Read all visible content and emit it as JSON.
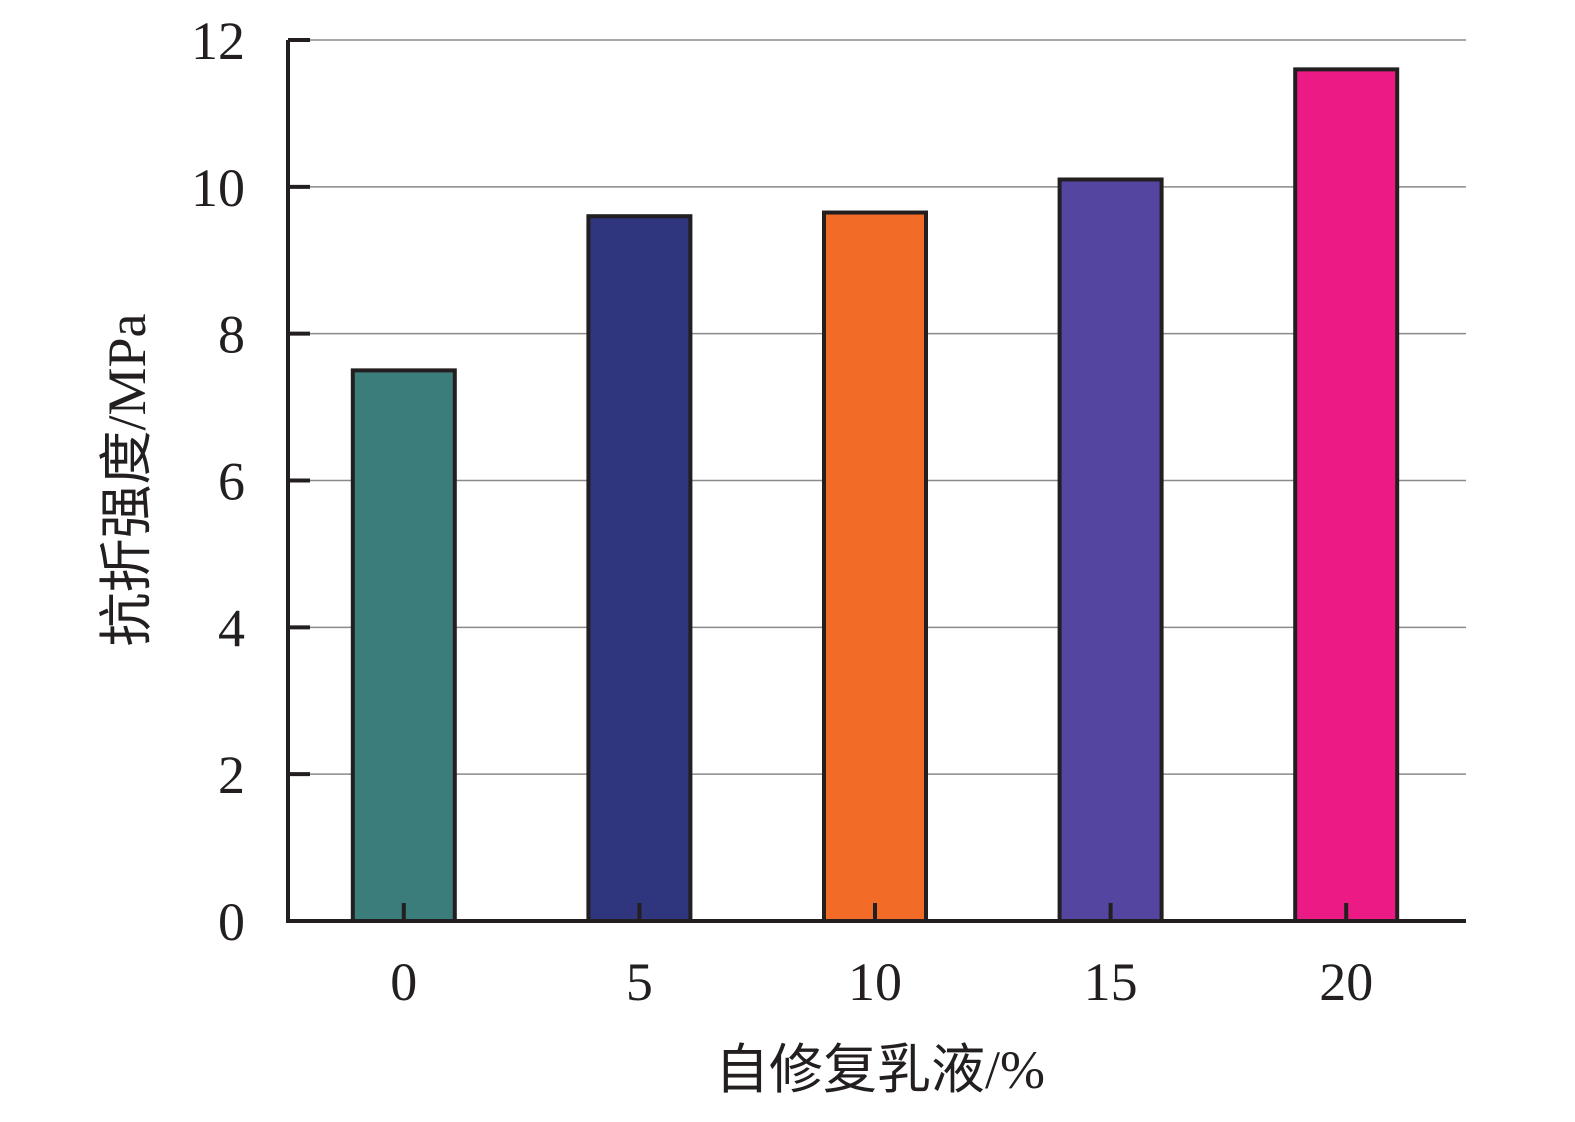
{
  "chart_data": {
    "type": "bar",
    "categories": [
      "0",
      "5",
      "10",
      "15",
      "20"
    ],
    "values": [
      7.5,
      9.6,
      9.65,
      10.1,
      11.6
    ],
    "colors": [
      "#3a7d7b",
      "#2f367d",
      "#f26c27",
      "#5445a0",
      "#ec1a84"
    ],
    "xlabel": "自修复乳液/%",
    "ylabel": "抗折强度/MPa",
    "ylim": [
      0,
      12
    ],
    "yticks": [
      "0",
      "2",
      "4",
      "6",
      "8",
      "10",
      "12"
    ],
    "grid": true
  }
}
